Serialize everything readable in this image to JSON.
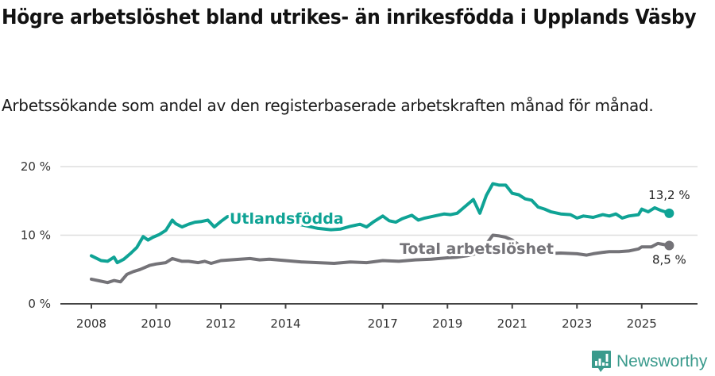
{
  "title": "Högre arbetslöshet bland utrikes- än inrikesfödda i Upplands Väsby",
  "subtitle": "Arbetssökande som andel av den registerbaserade arbetskraften månad för månad.",
  "brand": {
    "name": "Newsworthy",
    "icon": "newsworthy-chart-bubble-icon",
    "color": "#3a9a8c"
  },
  "colors": {
    "teal": "#0fa395",
    "gray": "#747378",
    "grid": "#dddddd",
    "axis": "#444444"
  },
  "chart_data": {
    "type": "line",
    "title": "Högre arbetslöshet bland utrikes- än inrikesfödda i Upplands Väsby",
    "subtitle": "Arbetssökande som andel av den registerbaserade arbetskraften månad för månad.",
    "xlabel": "",
    "ylabel": "",
    "ylim": [
      0,
      20
    ],
    "yticks": [
      0,
      10,
      20
    ],
    "ytick_labels": [
      "0 %",
      "10 %",
      "20 %"
    ],
    "xticks": [
      2008,
      2010,
      2012,
      2014,
      2017,
      2019,
      2021,
      2023,
      2025
    ],
    "xlim": [
      2007.1,
      2027.3
    ],
    "grid": true,
    "legend_position": "inline labels",
    "series": [
      {
        "name": "Utlandsfödda",
        "color": "#0fa395",
        "end_label": "13,2 %",
        "x": [
          2008.0,
          2008.3,
          2008.5,
          2008.7,
          2008.8,
          2009.0,
          2009.2,
          2009.4,
          2009.6,
          2009.75,
          2009.9,
          2010.1,
          2010.3,
          2010.5,
          2010.6,
          2010.8,
          2011.0,
          2011.2,
          2011.4,
          2011.6,
          2011.8,
          2012.0,
          2012.2,
          2012.5,
          2013.0,
          2013.5,
          2014.0,
          2014.5,
          2015.0,
          2015.4,
          2015.7,
          2016.0,
          2016.3,
          2016.5,
          2016.7,
          2017.0,
          2017.2,
          2017.4,
          2017.6,
          2017.9,
          2018.1,
          2018.3,
          2018.6,
          2018.9,
          2019.1,
          2019.3,
          2019.5,
          2019.8,
          2020.0,
          2020.2,
          2020.4,
          2020.6,
          2020.8,
          2021.0,
          2021.2,
          2021.4,
          2021.6,
          2021.8,
          2022.0,
          2022.2,
          2022.5,
          2022.8,
          2023.0,
          2023.2,
          2023.5,
          2023.8,
          2024.0,
          2024.2,
          2024.4,
          2024.6,
          2024.9,
          2025.0,
          2025.2,
          2025.4,
          2025.6,
          2025.85
        ],
        "values": [
          7.0,
          6.3,
          6.2,
          6.8,
          6.0,
          6.5,
          7.3,
          8.2,
          9.8,
          9.3,
          9.7,
          10.1,
          10.7,
          12.2,
          11.7,
          11.2,
          11.6,
          11.9,
          12.0,
          12.2,
          11.2,
          12.0,
          12.7,
          12.8,
          12.6,
          12.4,
          12.0,
          11.5,
          11.0,
          10.8,
          10.9,
          11.3,
          11.6,
          11.2,
          11.9,
          12.8,
          12.1,
          11.9,
          12.4,
          12.9,
          12.2,
          12.5,
          12.8,
          13.1,
          13.0,
          13.2,
          14.0,
          15.2,
          13.2,
          15.8,
          17.5,
          17.3,
          17.3,
          16.1,
          15.9,
          15.3,
          15.1,
          14.1,
          13.8,
          13.4,
          13.1,
          13.0,
          12.5,
          12.8,
          12.6,
          13.0,
          12.8,
          13.1,
          12.5,
          12.8,
          13.0,
          13.8,
          13.4,
          14.0,
          13.6,
          13.2
        ]
      },
      {
        "name": "Total arbetslöshet",
        "color": "#747378",
        "end_label": "8,5 %",
        "x": [
          2008.0,
          2008.3,
          2008.5,
          2008.7,
          2008.9,
          2009.1,
          2009.3,
          2009.5,
          2009.8,
          2010.0,
          2010.3,
          2010.5,
          2010.8,
          2011.0,
          2011.3,
          2011.5,
          2011.7,
          2012.0,
          2012.3,
          2012.6,
          2012.9,
          2013.2,
          2013.5,
          2014.0,
          2014.5,
          2015.0,
          2015.5,
          2016.0,
          2016.5,
          2017.0,
          2017.5,
          2018.0,
          2018.5,
          2019.0,
          2019.3,
          2019.6,
          2019.8,
          2020.0,
          2020.2,
          2020.4,
          2020.6,
          2020.8,
          2021.0,
          2021.2,
          2021.5,
          2021.8,
          2022.0,
          2022.5,
          2023.0,
          2023.3,
          2023.5,
          2023.8,
          2024.0,
          2024.3,
          2024.6,
          2024.9,
          2025.0,
          2025.3,
          2025.5,
          2025.85
        ],
        "values": [
          3.6,
          3.3,
          3.1,
          3.4,
          3.2,
          4.3,
          4.7,
          5.0,
          5.6,
          5.8,
          6.0,
          6.6,
          6.2,
          6.2,
          6.0,
          6.2,
          5.9,
          6.3,
          6.4,
          6.5,
          6.6,
          6.4,
          6.5,
          6.3,
          6.1,
          6.0,
          5.9,
          6.1,
          6.0,
          6.3,
          6.2,
          6.4,
          6.5,
          6.7,
          6.8,
          7.0,
          7.2,
          7.6,
          8.7,
          10.0,
          9.9,
          9.7,
          9.3,
          8.6,
          7.8,
          7.4,
          7.3,
          7.4,
          7.3,
          7.1,
          7.3,
          7.5,
          7.6,
          7.6,
          7.7,
          8.0,
          8.3,
          8.3,
          8.8,
          8.5
        ]
      }
    ]
  }
}
